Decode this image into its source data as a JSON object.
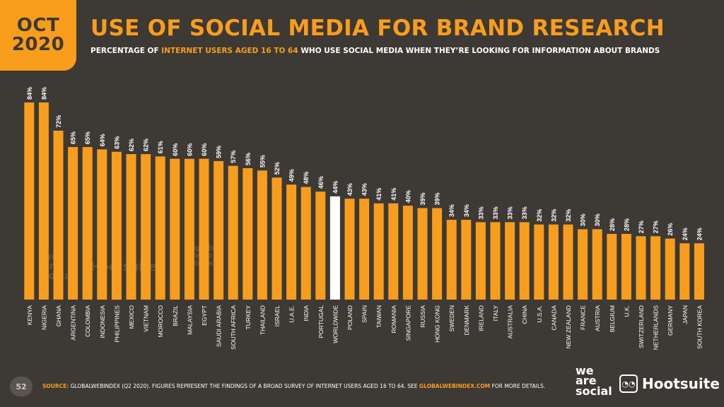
{
  "badge": {
    "month": "OCT",
    "year": "2020"
  },
  "title": "USE OF SOCIAL MEDIA FOR BRAND RESEARCH",
  "subtitle": {
    "part1": "PERCENTAGE OF ",
    "highlight": "INTERNET USERS AGED 16 TO 64",
    "part2": " WHO USE SOCIAL MEDIA WHEN THEY’RE LOOKING FOR INFORMATION ABOUT BRANDS"
  },
  "footer": {
    "page_number": "52",
    "source_label": "SOURCE:",
    "source_text": " GLOBALWEBINDEX (Q2 2020). FIGURES REPRESENT THE FINDINGS OF A BROAD SURVEY OF INTERNET USERS AGED 16 TO 64. SEE ",
    "source_link": "GLOBALWEBINDEX.COM",
    "source_end": " FOR MORE DETAILS.",
    "logo_we": "we",
    "logo_are": "are",
    "logo_social": "social",
    "logo_hootsuite": "Hootsuite",
    "logo_hootsuite_reg": "®"
  },
  "watermarks": {
    "we": "we",
    "are": "are",
    "social": "social",
    "hootsuite": "Hootsuite",
    "gwi_1": "global",
    "gwi_2": "web",
    "gwi_3": "index"
  },
  "colors": {
    "bar": "#f99d1c",
    "highlight_bar": "#ffffff",
    "background": "#3d3935"
  },
  "chart_data": {
    "type": "bar",
    "title": "USE OF SOCIAL MEDIA FOR BRAND RESEARCH",
    "categories": [
      "KENYA",
      "NIGERIA",
      "GHANA",
      "ARGENTINA",
      "COLOMBIA",
      "INDONESIA",
      "PHILIPPINES",
      "MEXICO",
      "VIETNAM",
      "MOROCCO",
      "BRAZIL",
      "MALAYSIA",
      "EGYPT",
      "SAUDI ARABIA",
      "SOUTH AFRICA",
      "TURKEY",
      "THAILAND",
      "ISRAEL",
      "U.A.E.",
      "INDIA",
      "PORTUGAL",
      "WORLDWIDE",
      "POLAND",
      "SPAIN",
      "TAIWAN",
      "ROMANIA",
      "SINGAPORE",
      "RUSSIA",
      "HONG KONG",
      "SWEDEN",
      "DENMARK",
      "IRELAND",
      "ITALY",
      "AUSTRALIA",
      "CHINA",
      "U.S.A.",
      "CANADA",
      "NEW ZEALAND",
      "FRANCE",
      "AUSTRIA",
      "BELGIUM",
      "U.K.",
      "SWITZERLAND",
      "NETHERLANDS",
      "GERMANY",
      "JAPAN",
      "SOUTH KOREA"
    ],
    "values": [
      84,
      84,
      72,
      65,
      65,
      64,
      63,
      62,
      62,
      61,
      60,
      60,
      60,
      59,
      57,
      56,
      55,
      52,
      49,
      48,
      46,
      44,
      43,
      43,
      41,
      41,
      40,
      39,
      39,
      34,
      34,
      33,
      33,
      33,
      33,
      32,
      32,
      32,
      30,
      30,
      28,
      28,
      27,
      27,
      26,
      24,
      24
    ],
    "value_labels": [
      "84%",
      "84%",
      "72%",
      "65%",
      "65%",
      "64%",
      "63%",
      "62%",
      "62%",
      "61%",
      "60%",
      "60%",
      "60%",
      "59%",
      "57%",
      "56%",
      "55%",
      "52%",
      "49%",
      "48%",
      "46%",
      "44%",
      "43%",
      "43%",
      "41%",
      "41%",
      "40%",
      "39%",
      "39%",
      "34%",
      "34%",
      "33%",
      "33%",
      "33%",
      "33%",
      "32%",
      "32%",
      "32%",
      "30%",
      "30%",
      "28%",
      "28%",
      "27%",
      "27%",
      "26%",
      "24%",
      "24%"
    ],
    "highlight_category": "WORLDWIDE",
    "ylim": [
      0,
      100
    ],
    "grid": false,
    "legend": "none"
  }
}
